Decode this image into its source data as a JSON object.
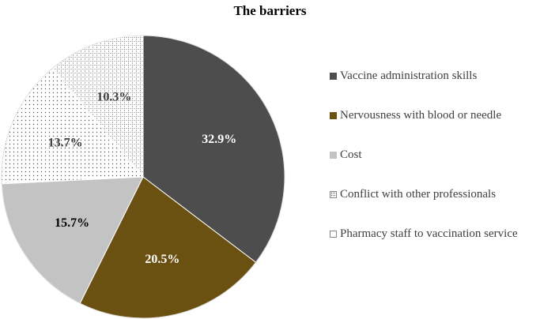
{
  "chart_data": {
    "type": "pie",
    "title": "The barriers",
    "categories": [
      "Vaccine administration skills",
      "Nervousness with blood or needle",
      "Cost",
      "Conflict with other professionals",
      "Pharmacy staff to vaccination service"
    ],
    "values": [
      32.9,
      20.5,
      15.7,
      13.7,
      10.3
    ],
    "data_labels": [
      "32.9%",
      "20.5%",
      "15.7%",
      "13.7%",
      "10.3%"
    ],
    "colors": [
      "#4d4d4d",
      "#6b5111",
      "#c3c3c3",
      "#ffffff",
      "#ffffff"
    ],
    "fills": [
      "solid",
      "solid",
      "solid",
      "dots",
      "grid"
    ],
    "label_colors": [
      "#ffffff",
      "#ffffff",
      "#000000",
      "#404040",
      "#404040"
    ],
    "legend": "right",
    "start_angle": "12 o'clock, clockwise"
  }
}
